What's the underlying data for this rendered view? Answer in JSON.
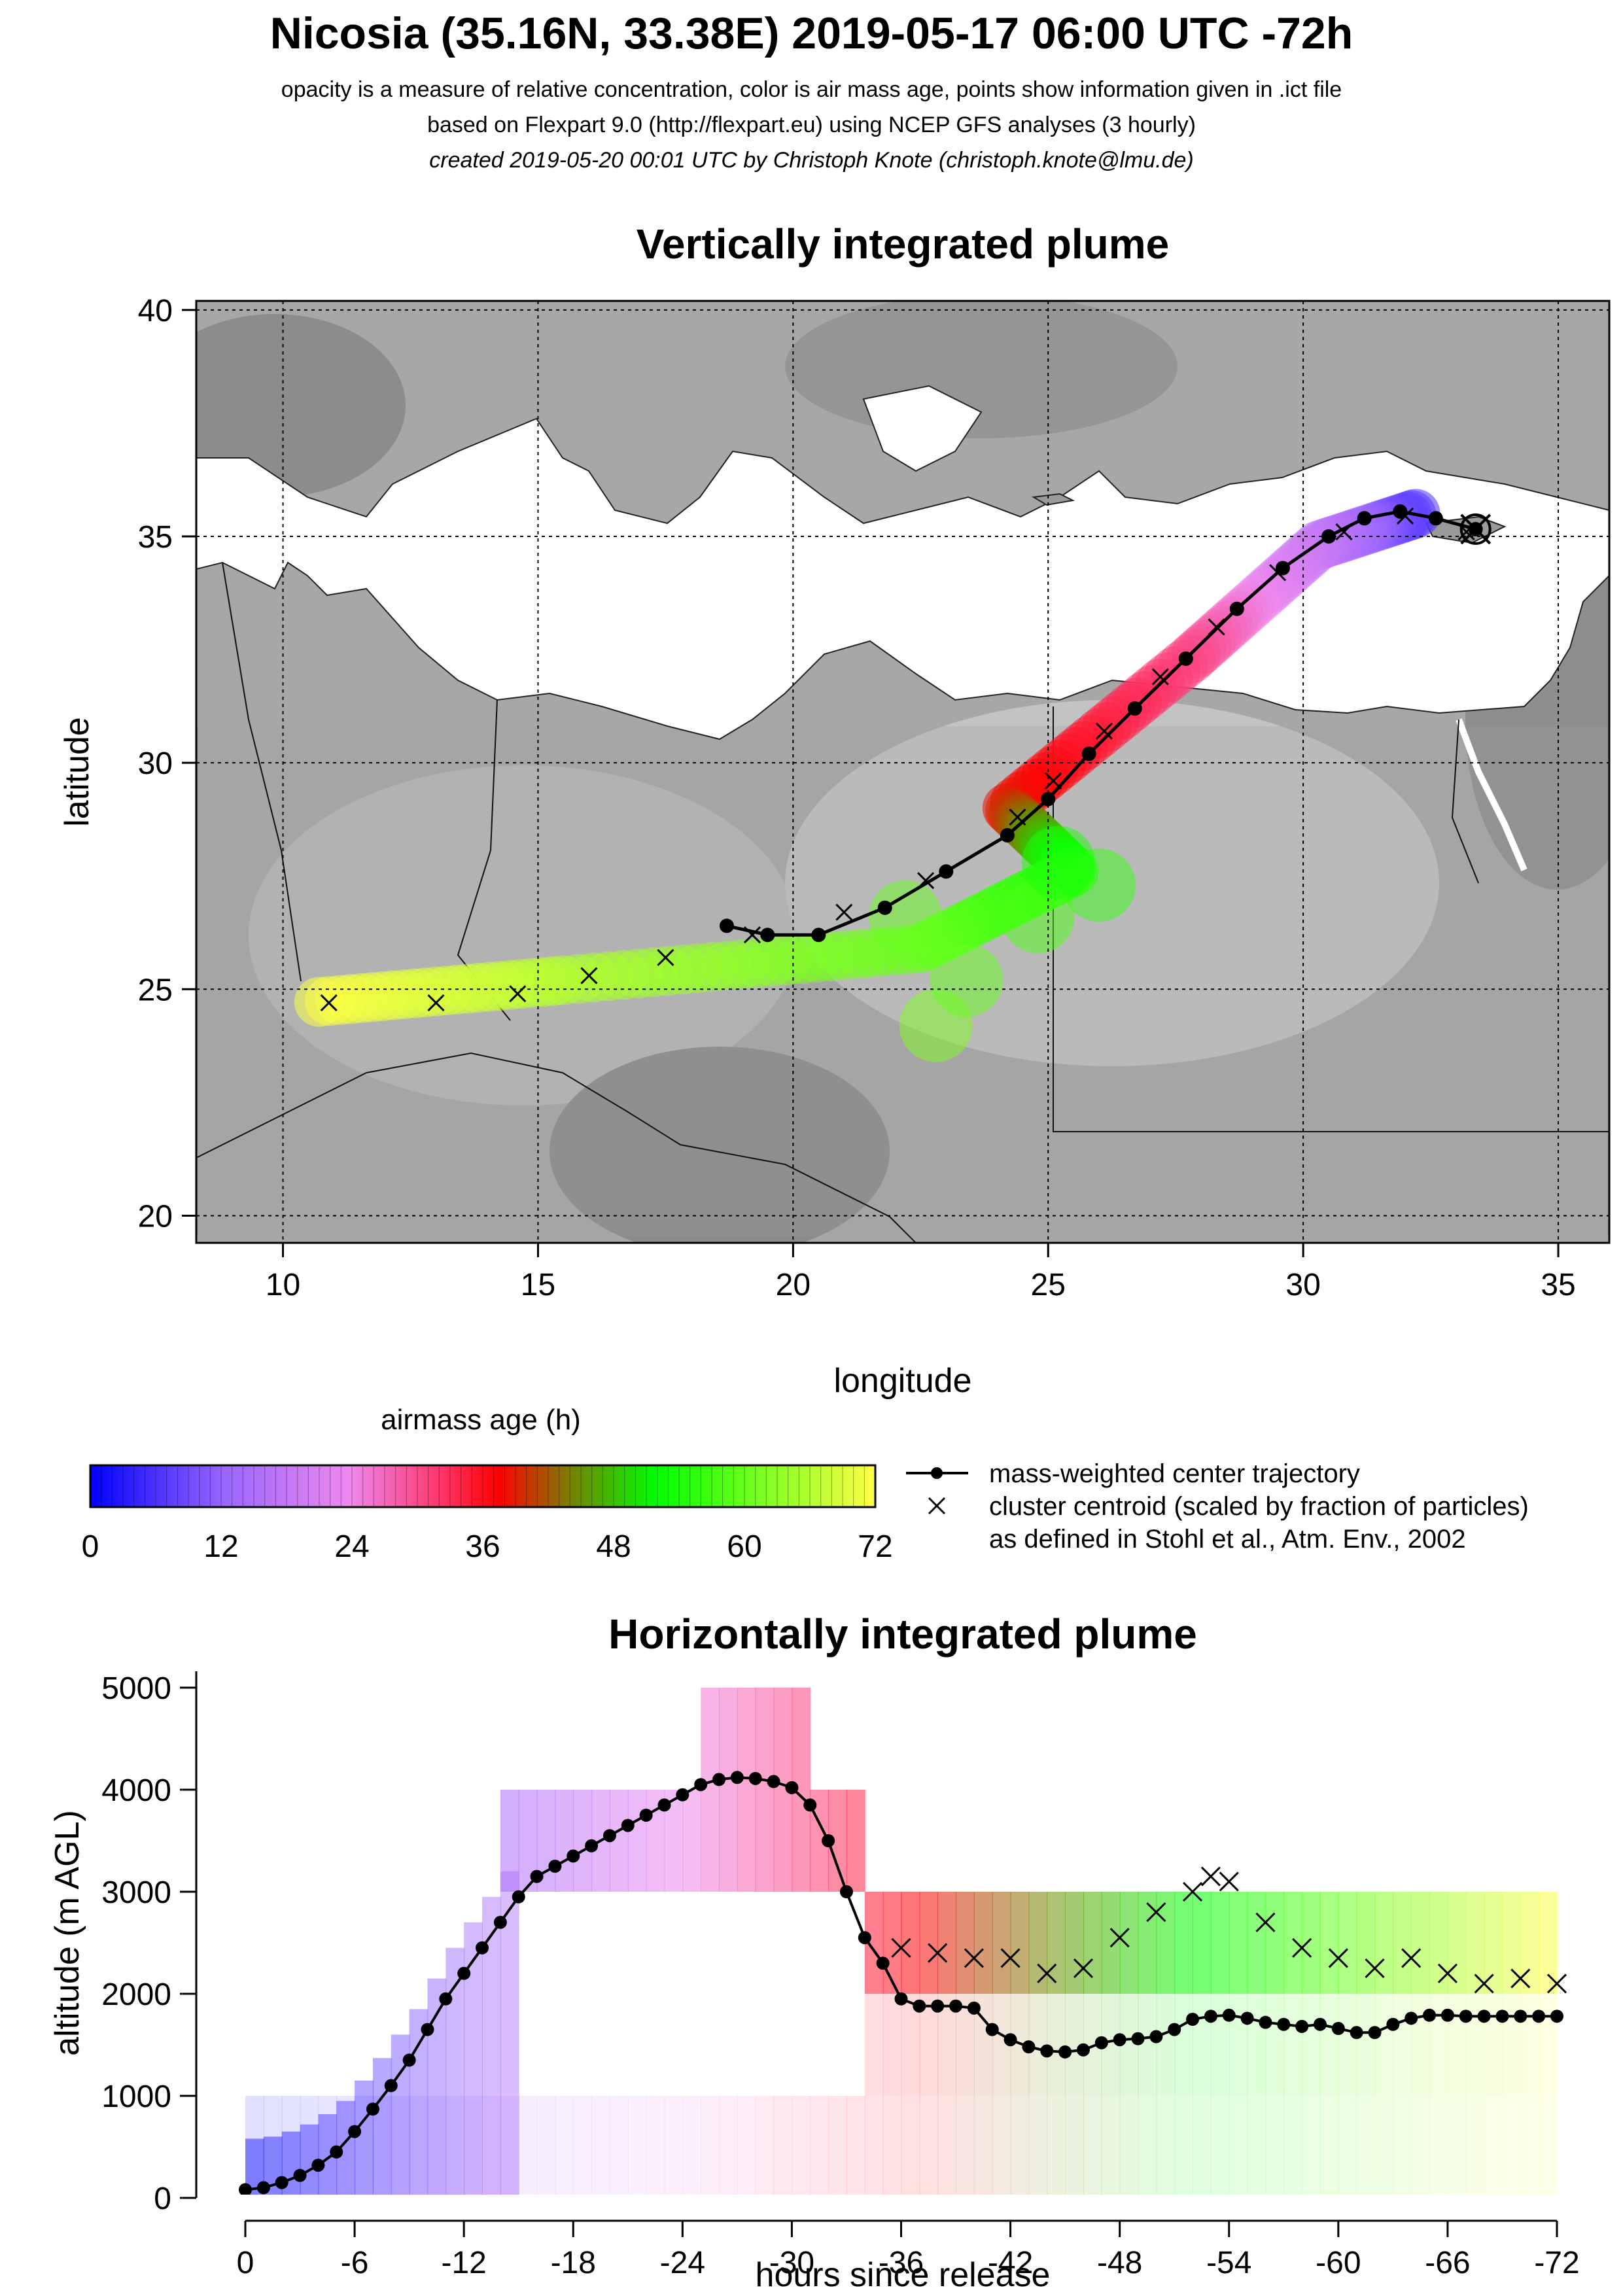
{
  "header": {
    "title": "Nicosia (35.16N, 33.38E) 2019-05-17 06:00 UTC -72h",
    "line1": "opacity is a measure of relative concentration, color is air mass age, points show information given in .ict file",
    "line2": "based on Flexpart 9.0 (http://flexpart.eu) using NCEP GFS analyses (3 hourly)",
    "line3": "created 2019-05-20 00:01 UTC by Christoph Knote (christoph.knote@lmu.de)"
  },
  "colors": {
    "age_scale": [
      "#0000ff",
      "#9966ff",
      "#ee88ee",
      "#ff3366",
      "#ff0000",
      "#00ff00",
      "#ffff44"
    ],
    "map_gray_dark": "#7a7a7a",
    "map_gray_light": "#cfcfcf",
    "sea": "#ffffff",
    "trajectory": "#000000"
  },
  "chart_data": [
    {
      "type": "line",
      "title": "Vertically integrated plume",
      "xlabel": "longitude",
      "ylabel": "latitude",
      "xlim": [
        8.3,
        36.0
      ],
      "ylim": [
        19.4,
        40.2
      ],
      "x_ticks": [
        "10",
        "15",
        "20",
        "25",
        "30",
        "35"
      ],
      "y_ticks": [
        "20",
        "25",
        "30",
        "35",
        "40"
      ],
      "grid": true,
      "release_site": {
        "lon": 33.38,
        "lat": 35.16
      },
      "series": [
        {
          "name": "mass-weighted center trajectory",
          "points": [
            [
              33.38,
              35.16
            ],
            [
              32.6,
              35.4
            ],
            [
              31.9,
              35.55
            ],
            [
              31.2,
              35.4
            ],
            [
              30.5,
              35.0
            ],
            [
              29.6,
              34.3
            ],
            [
              28.7,
              33.4
            ],
            [
              27.7,
              32.3
            ],
            [
              26.7,
              31.2
            ],
            [
              25.8,
              30.2
            ],
            [
              25.0,
              29.2
            ],
            [
              24.2,
              28.4
            ],
            [
              23.0,
              27.6
            ],
            [
              21.8,
              26.8
            ],
            [
              20.5,
              26.2
            ],
            [
              19.5,
              26.2
            ],
            [
              18.7,
              26.4
            ]
          ]
        },
        {
          "name": "cluster centroid (scaled by fraction of particles)",
          "points": [
            [
              33.2,
              35.1
            ],
            [
              32.0,
              35.45
            ],
            [
              30.8,
              35.1
            ],
            [
              29.5,
              34.2
            ],
            [
              28.3,
              33.0
            ],
            [
              27.2,
              31.9
            ],
            [
              26.1,
              30.7
            ],
            [
              25.1,
              29.6
            ],
            [
              24.4,
              28.8
            ],
            [
              22.6,
              27.4
            ],
            [
              21.0,
              26.7
            ],
            [
              19.2,
              26.2
            ],
            [
              17.5,
              25.7
            ],
            [
              16.0,
              25.3
            ],
            [
              14.6,
              24.9
            ],
            [
              13.0,
              24.7
            ],
            [
              10.9,
              24.7
            ]
          ]
        }
      ],
      "plume": [
        {
          "age": 6,
          "lon_lat": [
            32.2,
            35.5
          ]
        },
        {
          "age": 18,
          "lon_lat": [
            30.3,
            34.8
          ]
        },
        {
          "age": 30,
          "lon_lat": [
            27.8,
            32.3
          ]
        },
        {
          "age": 38,
          "lon_lat": [
            24.2,
            29.0
          ]
        },
        {
          "age": 54,
          "lon_lat": [
            25.5,
            27.6
          ]
        },
        {
          "age": 60,
          "lon_lat": [
            22.5,
            25.9
          ]
        },
        {
          "age": 66,
          "lon_lat": [
            15.5,
            25.2
          ]
        },
        {
          "age": 72,
          "lon_lat": [
            10.5,
            24.7
          ]
        }
      ]
    },
    {
      "type": "line",
      "title": "Horizontally integrated plume",
      "xlabel": "hours since release",
      "ylabel": "altitude (m AGL)",
      "xlim": [
        0,
        -72
      ],
      "ylim": [
        0,
        5000
      ],
      "x_ticks": [
        "0",
        "-6",
        "-12",
        "-18",
        "-24",
        "-30",
        "-36",
        "-42",
        "-48",
        "-54",
        "-60",
        "-66",
        "-72"
      ],
      "y_ticks": [
        "0",
        "1000",
        "2000",
        "3000",
        "4000",
        "5000"
      ],
      "series": [
        {
          "name": "mass-weighted center trajectory",
          "points": [
            [
              0,
              80
            ],
            [
              -1,
              100
            ],
            [
              -2,
              150
            ],
            [
              -3,
              220
            ],
            [
              -4,
              320
            ],
            [
              -5,
              450
            ],
            [
              -6,
              650
            ],
            [
              -7,
              870
            ],
            [
              -8,
              1100
            ],
            [
              -9,
              1350
            ],
            [
              -10,
              1650
            ],
            [
              -11,
              1950
            ],
            [
              -12,
              2200
            ],
            [
              -13,
              2450
            ],
            [
              -14,
              2700
            ],
            [
              -15,
              2950
            ],
            [
              -16,
              3150
            ],
            [
              -17,
              3250
            ],
            [
              -18,
              3350
            ],
            [
              -19,
              3450
            ],
            [
              -20,
              3550
            ],
            [
              -21,
              3650
            ],
            [
              -22,
              3750
            ],
            [
              -23,
              3850
            ],
            [
              -24,
              3950
            ],
            [
              -25,
              4050
            ],
            [
              -26,
              4100
            ],
            [
              -27,
              4120
            ],
            [
              -28,
              4110
            ],
            [
              -29,
              4080
            ],
            [
              -30,
              4020
            ],
            [
              -31,
              3850
            ],
            [
              -32,
              3500
            ],
            [
              -33,
              3000
            ],
            [
              -34,
              2550
            ],
            [
              -35,
              2300
            ],
            [
              -36,
              1950
            ],
            [
              -37,
              1880
            ],
            [
              -38,
              1880
            ],
            [
              -39,
              1880
            ],
            [
              -40,
              1860
            ],
            [
              -41,
              1650
            ],
            [
              -42,
              1550
            ],
            [
              -43,
              1480
            ],
            [
              -44,
              1440
            ],
            [
              -45,
              1430
            ],
            [
              -46,
              1450
            ],
            [
              -47,
              1520
            ],
            [
              -48,
              1550
            ],
            [
              -49,
              1560
            ],
            [
              -50,
              1580
            ],
            [
              -51,
              1650
            ],
            [
              -52,
              1750
            ],
            [
              -53,
              1780
            ],
            [
              -54,
              1790
            ],
            [
              -55,
              1760
            ],
            [
              -56,
              1720
            ],
            [
              -57,
              1700
            ],
            [
              -58,
              1680
            ],
            [
              -59,
              1700
            ],
            [
              -60,
              1660
            ],
            [
              -61,
              1620
            ],
            [
              -62,
              1620
            ],
            [
              -63,
              1700
            ],
            [
              -64,
              1760
            ],
            [
              -65,
              1790
            ],
            [
              -66,
              1790
            ],
            [
              -67,
              1780
            ],
            [
              -68,
              1780
            ],
            [
              -69,
              1780
            ],
            [
              -70,
              1780
            ],
            [
              -71,
              1780
            ],
            [
              -72,
              1780
            ]
          ]
        },
        {
          "name": "cluster centroid (scaled by fraction of particles)",
          "points": [
            [
              -36,
              2450
            ],
            [
              -38,
              2400
            ],
            [
              -40,
              2350
            ],
            [
              -42,
              2350
            ],
            [
              -44,
              2200
            ],
            [
              -46,
              2250
            ],
            [
              -48,
              2550
            ],
            [
              -50,
              2800
            ],
            [
              -52,
              3000
            ],
            [
              -53,
              3150
            ],
            [
              -54,
              3100
            ],
            [
              -56,
              2700
            ],
            [
              -58,
              2450
            ],
            [
              -60,
              2350
            ],
            [
              -62,
              2250
            ],
            [
              -64,
              2350
            ],
            [
              -66,
              2200
            ],
            [
              -68,
              2100
            ],
            [
              -70,
              2150
            ],
            [
              -72,
              2100
            ]
          ]
        }
      ],
      "plume_layers": [
        {
          "base": 3000,
          "top": 4000,
          "hours": [
            -14,
            -34
          ]
        },
        {
          "base": 4000,
          "top": 5000,
          "hours": [
            -25,
            -31
          ]
        },
        {
          "base": 2000,
          "top": 3000,
          "hours": [
            -34,
            -72
          ]
        },
        {
          "base": 1000,
          "top": 2000,
          "hours": [
            -34,
            -72
          ]
        },
        {
          "base": 0,
          "top": 1000,
          "hours": [
            0,
            -72
          ]
        }
      ]
    }
  ],
  "legend": {
    "colorbar_title": "airmass age (h)",
    "colorbar_ticks": [
      "0",
      "12",
      "24",
      "36",
      "48",
      "60",
      "72"
    ],
    "items": [
      {
        "symbol": "line-dot",
        "label": "mass-weighted center trajectory"
      },
      {
        "symbol": "cross",
        "label": "cluster centroid (scaled by fraction of particles)"
      },
      {
        "symbol": "none",
        "label": "as defined in Stohl et al., Atm. Env., 2002"
      }
    ]
  }
}
